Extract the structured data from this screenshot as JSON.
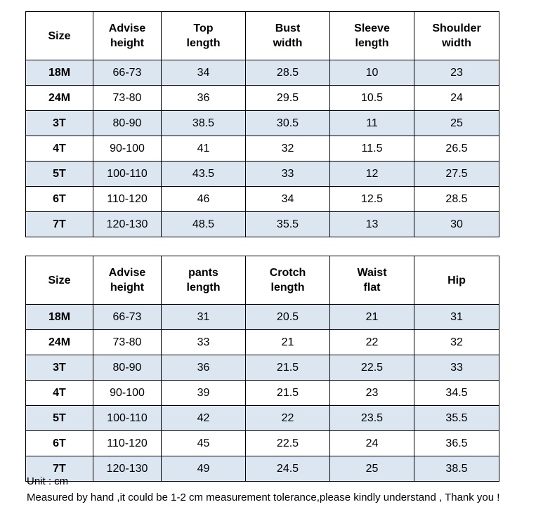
{
  "top_table": {
    "headers": [
      "Size",
      "Advise\nheight",
      "Top\nlength",
      "Bust\nwidth",
      "Sleeve\nlength",
      "Shoulder\nwidth"
    ],
    "rows": [
      [
        "18M",
        "66-73",
        "34",
        "28.5",
        "10",
        "23"
      ],
      [
        "24M",
        "73-80",
        "36",
        "29.5",
        "10.5",
        "24"
      ],
      [
        "3T",
        "80-90",
        "38.5",
        "30.5",
        "11",
        "25"
      ],
      [
        "4T",
        "90-100",
        "41",
        "32",
        "11.5",
        "26.5"
      ],
      [
        "5T",
        "100-110",
        "43.5",
        "33",
        "12",
        "27.5"
      ],
      [
        "6T",
        "110-120",
        "46",
        "34",
        "12.5",
        "28.5"
      ],
      [
        "7T",
        "120-130",
        "48.5",
        "35.5",
        "13",
        "30"
      ]
    ]
  },
  "bottom_table": {
    "headers": [
      "Size",
      "Advise\nheight",
      "pants\nlength",
      "Crotch\nlength",
      "Waist\nflat",
      "Hip"
    ],
    "rows": [
      [
        "18M",
        "66-73",
        "31",
        "20.5",
        "21",
        "31"
      ],
      [
        "24M",
        "73-80",
        "33",
        "21",
        "22",
        "32"
      ],
      [
        "3T",
        "80-90",
        "36",
        "21.5",
        "22.5",
        "33"
      ],
      [
        "4T",
        "90-100",
        "39",
        "21.5",
        "23",
        "34.5"
      ],
      [
        "5T",
        "100-110",
        "42",
        "22",
        "23.5",
        "35.5"
      ],
      [
        "6T",
        "110-120",
        "45",
        "22.5",
        "24",
        "36.5"
      ],
      [
        "7T",
        "120-130",
        "49",
        "24.5",
        "25",
        "38.5"
      ]
    ]
  },
  "notes": {
    "unit": "Unit : cm",
    "tolerance": "Measured by hand ,it could be 1-2 cm measurement tolerance,please kindly understand , Thank you !"
  },
  "colors": {
    "shaded_row": "#dce6f1",
    "border": "#000000"
  }
}
